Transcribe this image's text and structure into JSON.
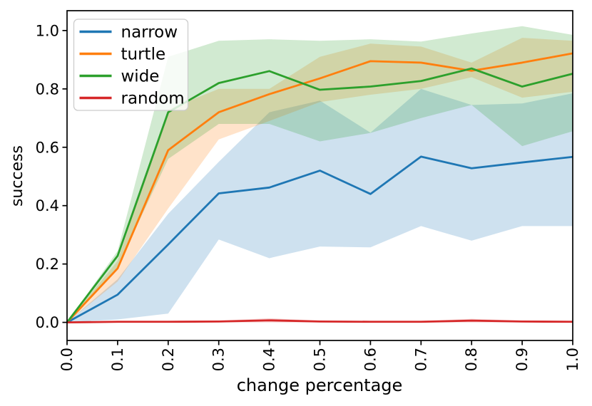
{
  "chart_data": {
    "type": "line",
    "title": "",
    "xlabel": "change percentage",
    "ylabel": "success",
    "xlim": [
      0,
      1
    ],
    "ylim": [
      -0.062,
      1.068
    ],
    "grid": false,
    "legend_position": "upper left",
    "band_alpha": 0.22,
    "x": [
      0.0,
      0.1,
      0.2,
      0.3,
      0.4,
      0.5,
      0.6,
      0.7,
      0.8,
      0.9,
      1.0
    ],
    "xticks": [
      {
        "v": 0.0,
        "label": "0.0"
      },
      {
        "v": 0.1,
        "label": "0.1"
      },
      {
        "v": 0.2,
        "label": "0.2"
      },
      {
        "v": 0.3,
        "label": "0.3"
      },
      {
        "v": 0.4,
        "label": "0.4"
      },
      {
        "v": 0.5,
        "label": "0.5"
      },
      {
        "v": 0.6,
        "label": "0.6"
      },
      {
        "v": 0.7,
        "label": "0.7"
      },
      {
        "v": 0.8,
        "label": "0.8"
      },
      {
        "v": 0.9,
        "label": "0.9"
      },
      {
        "v": 1.0,
        "label": "1.0"
      }
    ],
    "yticks": [
      {
        "v": 0.0,
        "label": "0.0"
      },
      {
        "v": 0.2,
        "label": "0.2"
      },
      {
        "v": 0.4,
        "label": "0.4"
      },
      {
        "v": 0.6,
        "label": "0.6"
      },
      {
        "v": 0.8,
        "label": "0.8"
      },
      {
        "v": 1.0,
        "label": "1.0"
      }
    ],
    "series": [
      {
        "name": "narrow",
        "color": "#1f77b4",
        "values": [
          0,
          0.095,
          0.267,
          0.442,
          0.462,
          0.52,
          0.44,
          0.568,
          0.528,
          0.548,
          0.567
        ],
        "band_lo": [
          0,
          0.01,
          0.03,
          0.284,
          0.22,
          0.26,
          0.257,
          0.33,
          0.28,
          0.33,
          0.33
        ],
        "band_hi": [
          0,
          0.148,
          0.372,
          0.55,
          0.72,
          0.76,
          0.65,
          0.8,
          0.745,
          0.75,
          0.785
        ]
      },
      {
        "name": "turtle",
        "color": "#ff7f0e",
        "values": [
          0,
          0.185,
          0.59,
          0.72,
          0.782,
          0.836,
          0.895,
          0.89,
          0.862,
          0.89,
          0.922
        ],
        "band_lo": [
          0,
          0.14,
          0.39,
          0.627,
          0.69,
          0.755,
          0.78,
          0.8,
          0.84,
          0.77,
          0.79
        ],
        "band_hi": [
          0,
          0.21,
          0.73,
          0.8,
          0.8,
          0.91,
          0.955,
          0.945,
          0.89,
          0.975,
          0.965
        ]
      },
      {
        "name": "wide",
        "color": "#2ca02c",
        "values": [
          0,
          0.228,
          0.72,
          0.82,
          0.861,
          0.797,
          0.808,
          0.827,
          0.87,
          0.808,
          0.852
        ],
        "band_lo": [
          0,
          0.19,
          0.56,
          0.68,
          0.68,
          0.62,
          0.649,
          0.7,
          0.745,
          0.604,
          0.655
        ],
        "band_hi": [
          0,
          0.245,
          0.91,
          0.965,
          0.97,
          0.965,
          0.97,
          0.962,
          0.99,
          1.015,
          0.985
        ]
      },
      {
        "name": "random",
        "color": "#d62728",
        "values": [
          0,
          0.002,
          0.002,
          0.003,
          0.007,
          0.003,
          0.002,
          0.002,
          0.006,
          0.003,
          0.002
        ],
        "band_lo": [
          0,
          0,
          0,
          0,
          0,
          0,
          0,
          0,
          0,
          0,
          0
        ],
        "band_hi": [
          0.002,
          0.005,
          0.005,
          0.006,
          0.014,
          0.006,
          0.005,
          0.005,
          0.012,
          0.006,
          0.005
        ]
      }
    ]
  }
}
